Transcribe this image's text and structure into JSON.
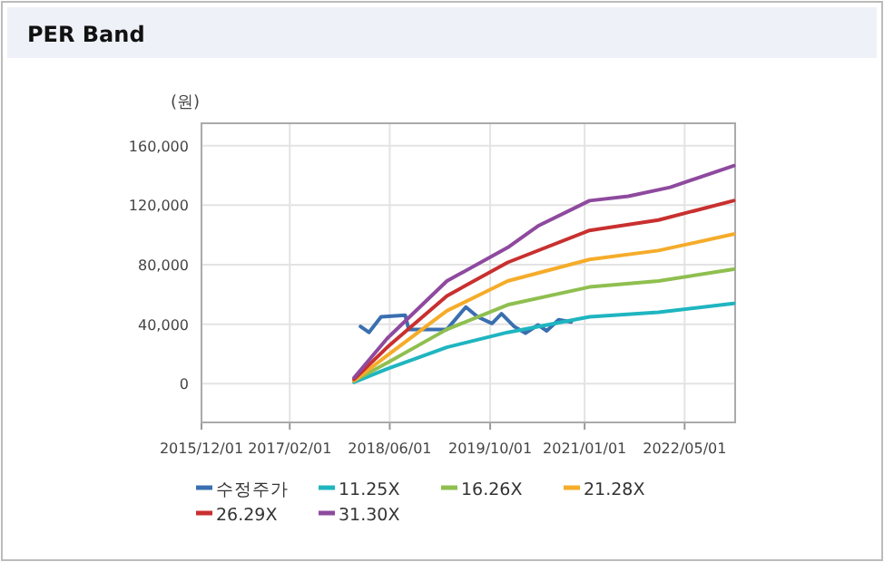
{
  "chart_data": {
    "type": "line",
    "title": "PER Band",
    "ylabel": "(원)",
    "xlim": [
      "2015-12-01",
      "2023-01-01"
    ],
    "xticks": [
      {
        "value": "2015-12-01",
        "label": "2015/12/01"
      },
      {
        "value": "2017-02-01",
        "label": "2017/02/01"
      },
      {
        "value": "2018-06-01",
        "label": "2018/06/01"
      },
      {
        "value": "2019-10-01",
        "label": "2019/10/01"
      },
      {
        "value": "2021-01-01",
        "label": "2021/01/01"
      },
      {
        "value": "2022-05-01",
        "label": "2022/05/01"
      }
    ],
    "ylim": [
      -26000,
      175000
    ],
    "yticks": [
      0,
      {
        "value": 40000,
        "label": "40,000"
      },
      {
        "value": 80000,
        "label": "80,000"
      },
      {
        "value": 120000,
        "label": "120,000"
      },
      {
        "value": 160000,
        "label": "160,000"
      }
    ],
    "grid": true,
    "legend": "bottom",
    "series": [
      {
        "name": "수정주가",
        "color": "#3a6fb0",
        "x": [
          "2018-01-10",
          "2018-02-20",
          "2018-04-20",
          "2018-08-15",
          "2018-09-01",
          "2018-12-10",
          "2019-03-05",
          "2019-06-05",
          "2019-08-01",
          "2019-10-10",
          "2019-11-25",
          "2020-01-25",
          "2020-03-20",
          "2020-05-20",
          "2020-07-01",
          "2020-08-28",
          "2020-10-28"
        ],
        "values": [
          38500,
          34500,
          45000,
          46000,
          36500,
          36500,
          36500,
          51500,
          45000,
          40500,
          47000,
          38500,
          34000,
          39500,
          35500,
          43000,
          41500
        ]
      },
      {
        "name": "11.25X",
        "color": "#1fb5c0",
        "x": [
          "2017-12-10",
          "2018-05-20",
          "2019-03-05",
          "2019-12-25",
          "2021-01-25",
          "2021-12-25",
          "2022-12-25"
        ],
        "values": [
          1000,
          10000,
          24500,
          34500,
          45000,
          48000,
          54000
        ]
      },
      {
        "name": "16.26X",
        "color": "#8fbf4f",
        "x": [
          "2017-12-10",
          "2018-05-20",
          "2019-03-05",
          "2019-12-25",
          "2021-01-25",
          "2021-12-25",
          "2022-12-25"
        ],
        "values": [
          2000,
          14000,
          36500,
          53000,
          65000,
          69000,
          77000
        ]
      },
      {
        "name": "21.28X",
        "color": "#f5ac2a",
        "x": [
          "2017-12-10",
          "2018-05-20",
          "2019-03-05",
          "2019-12-25",
          "2021-01-25",
          "2021-12-25",
          "2022-12-25"
        ],
        "values": [
          2000,
          19000,
          49000,
          69000,
          83500,
          89500,
          100500
        ]
      },
      {
        "name": "26.29X",
        "color": "#c8302f",
        "x": [
          "2017-12-10",
          "2018-05-20",
          "2019-03-05",
          "2019-12-25",
          "2021-01-25",
          "2021-12-25",
          "2022-12-25"
        ],
        "values": [
          3000,
          24500,
          59000,
          81500,
          103000,
          110000,
          123000
        ]
      },
      {
        "name": "31.30X",
        "color": "#8e4a9e",
        "x": [
          "2017-12-10",
          "2018-05-20",
          "2019-03-05",
          "2019-12-25",
          "2020-05-20",
          "2021-01-25",
          "2021-08-01",
          "2022-02-20",
          "2022-12-25"
        ],
        "values": [
          4000,
          30500,
          69000,
          91500,
          106000,
          123000,
          126000,
          132000,
          146500
        ]
      }
    ]
  }
}
